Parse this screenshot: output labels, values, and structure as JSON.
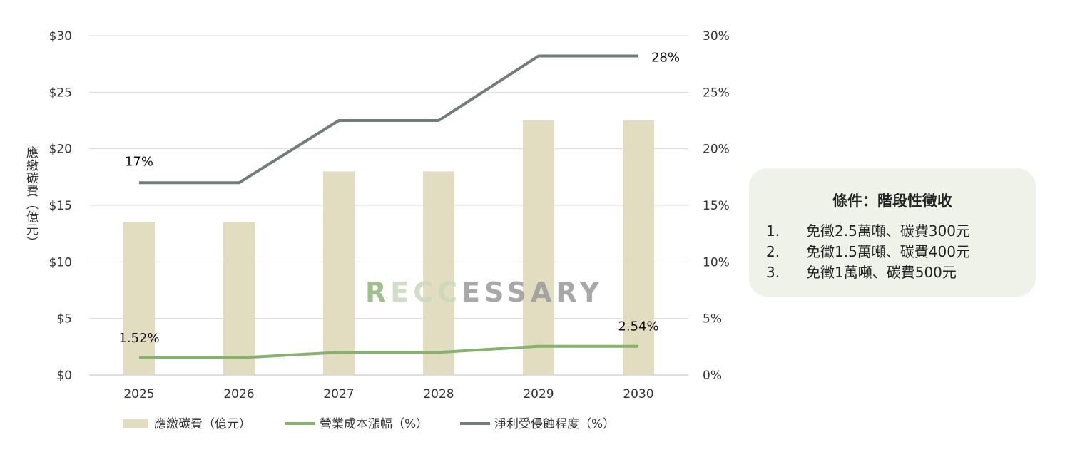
{
  "chart_data": {
    "type": "bar",
    "categories": [
      "2025",
      "2026",
      "2027",
      "2028",
      "2029",
      "2030"
    ],
    "ylabel": "應繳碳費（億元）",
    "y_left_ticks": [
      "$0",
      "$5",
      "$10",
      "$15",
      "$20",
      "$25",
      "$30"
    ],
    "y_right_ticks": [
      "0%",
      "5%",
      "10%",
      "15%",
      "20%",
      "25%",
      "30%"
    ],
    "ylim_left": [
      0,
      30
    ],
    "ylim_right": [
      0,
      30
    ],
    "grid": true,
    "legend_position": "bottom",
    "series": [
      {
        "name": "應繳碳費（億元）",
        "type": "bar",
        "axis": "left",
        "color": "#e2dcc0",
        "values": [
          13.5,
          13.5,
          18,
          18,
          22.5,
          22.5
        ]
      },
      {
        "name": "營業成本漲幅（%）",
        "type": "line",
        "axis": "right",
        "color": "#86b36c",
        "values": [
          1.52,
          1.52,
          2.0,
          2.0,
          2.54,
          2.54
        ]
      },
      {
        "name": "淨利受侵蝕程度（%）",
        "type": "line",
        "axis": "right",
        "color": "#6f7f77",
        "values": [
          17,
          17,
          22.5,
          22.5,
          28.2,
          28.2
        ]
      }
    ],
    "annotations": [
      {
        "text": "17%",
        "series": 2,
        "index": 0
      },
      {
        "text": "28%",
        "series": 2,
        "index": 5
      },
      {
        "text": "1.52%",
        "series": 1,
        "index": 0
      },
      {
        "text": "2.54%",
        "series": 1,
        "index": 5
      }
    ]
  },
  "watermark": {
    "part1": "R",
    "part2": "ECC",
    "part3": "ESSARY"
  },
  "conditions": {
    "title": "條件：階段性徵收",
    "items": [
      {
        "num": "1.",
        "text": "免徵2.5萬噸、碳費300元"
      },
      {
        "num": "2.",
        "text": "免徵1.5萬噸、碳費400元"
      },
      {
        "num": "3.",
        "text": "免徵1萬噸、碳費500元"
      }
    ]
  }
}
